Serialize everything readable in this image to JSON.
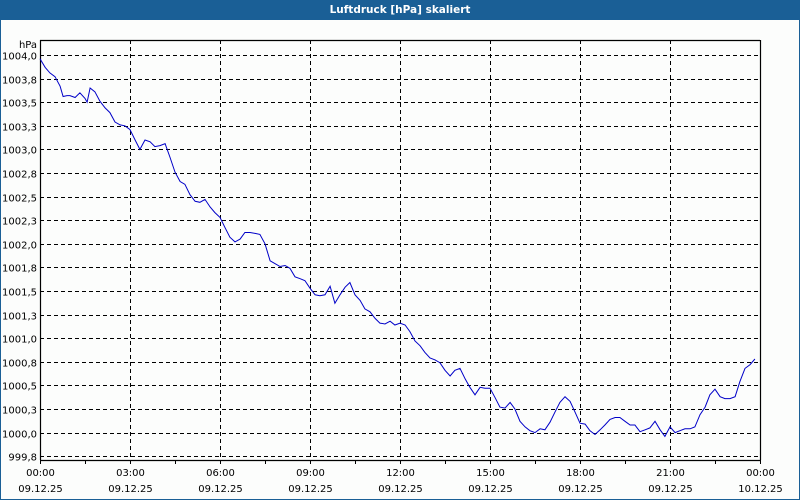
{
  "window": {
    "title": "Luftdruck [hPa] skaliert"
  },
  "colors": {
    "titlebar": "#1a5f96",
    "line": "#0000c8",
    "grid": "#000000",
    "background": "#fcfdfc"
  },
  "chart_data": {
    "type": "line",
    "title": "Luftdruck [hPa] skaliert",
    "xlabel": "",
    "ylabel": "hPa",
    "ylim": [
      999.75,
      1004.0
    ],
    "xlim": [
      "09.12.25 00:00",
      "10.12.25 00:00"
    ],
    "grid": true,
    "legend": null,
    "y_ticks": [
      "1004,0",
      "1003,8",
      "1003,5",
      "1003,3",
      "1003,0",
      "1002,8",
      "1002,5",
      "1002,3",
      "1002,0",
      "1001,8",
      "1001,5",
      "1001,3",
      "1001,0",
      "1000,8",
      "1000,5",
      "1000,3",
      "1000,0",
      "999,8"
    ],
    "x_ticks": [
      {
        "time": "00:00",
        "date": "09.12.25"
      },
      {
        "time": "03:00",
        "date": "09.12.25"
      },
      {
        "time": "06:00",
        "date": "09.12.25"
      },
      {
        "time": "09:00",
        "date": "09.12.25"
      },
      {
        "time": "12:00",
        "date": "09.12.25"
      },
      {
        "time": "15:00",
        "date": "09.12.25"
      },
      {
        "time": "18:00",
        "date": "09.12.25"
      },
      {
        "time": "21:00",
        "date": "09.12.25"
      },
      {
        "time": "00:00",
        "date": "10.12.25"
      }
    ],
    "series": [
      {
        "name": "Luftdruck",
        "hours": [
          0,
          0.17,
          0.33,
          0.5,
          0.67,
          0.77,
          0.9,
          1.0,
          1.17,
          1.33,
          1.5,
          1.57,
          1.67,
          1.83,
          2.0,
          2.17,
          2.33,
          2.5,
          2.67,
          2.83,
          3.0,
          3.17,
          3.33,
          3.5,
          3.67,
          3.83,
          4.0,
          4.17,
          4.33,
          4.5,
          4.67,
          4.83,
          5.0,
          5.17,
          5.33,
          5.5,
          5.67,
          5.83,
          6.0,
          6.17,
          6.33,
          6.5,
          6.67,
          6.83,
          7.0,
          7.17,
          7.33,
          7.5,
          7.67,
          7.83,
          8.0,
          8.17,
          8.33,
          8.5,
          8.67,
          8.83,
          9.0,
          9.17,
          9.33,
          9.5,
          9.67,
          9.83,
          10.0,
          10.17,
          10.33,
          10.5,
          10.67,
          10.83,
          11.0,
          11.17,
          11.33,
          11.5,
          11.67,
          11.83,
          12.0,
          12.17,
          12.33,
          12.5,
          12.67,
          12.83,
          13.0,
          13.17,
          13.33,
          13.5,
          13.67,
          13.83,
          14.0,
          14.17,
          14.33,
          14.5,
          14.67,
          14.83,
          15.0,
          15.17,
          15.33,
          15.5,
          15.67,
          15.83,
          16.0,
          16.17,
          16.33,
          16.5,
          16.67,
          16.83,
          17.0,
          17.17,
          17.33,
          17.5,
          17.67,
          17.83,
          18.0,
          18.17,
          18.33,
          18.5,
          18.67,
          18.83,
          19.0,
          19.17,
          19.33,
          19.5,
          19.67,
          19.83,
          20.0,
          20.17,
          20.33,
          20.5,
          20.67,
          20.83,
          21.0,
          21.17,
          21.33,
          21.5,
          21.67,
          21.83,
          22.0,
          22.17,
          22.33,
          22.5,
          22.67,
          22.83,
          23.0,
          23.17,
          23.33,
          23.5,
          23.67,
          23.83
        ],
        "values": [
          1003.96,
          1003.87,
          1003.81,
          1003.77,
          1003.67,
          1003.56,
          1003.57,
          1003.57,
          1003.55,
          1003.6,
          1003.54,
          1003.5,
          1003.65,
          1003.61,
          1003.51,
          1003.44,
          1003.39,
          1003.29,
          1003.26,
          1003.25,
          1003.21,
          1003.1,
          1003.0,
          1003.1,
          1003.08,
          1003.03,
          1003.04,
          1003.06,
          1002.92,
          1002.76,
          1002.66,
          1002.63,
          1002.52,
          1002.45,
          1002.44,
          1002.47,
          1002.39,
          1002.33,
          1002.28,
          1002.17,
          1002.07,
          1002.02,
          1002.05,
          1002.12,
          1002.12,
          1002.11,
          1002.1,
          1002.0,
          1001.82,
          1001.79,
          1001.76,
          1001.77,
          1001.74,
          1001.65,
          1001.63,
          1001.61,
          1001.53,
          1001.46,
          1001.45,
          1001.46,
          1001.55,
          1001.37,
          1001.46,
          1001.54,
          1001.59,
          1001.46,
          1001.4,
          1001.31,
          1001.28,
          1001.21,
          1001.16,
          1001.15,
          1001.18,
          1001.14,
          1001.16,
          1001.14,
          1001.07,
          1000.97,
          1000.92,
          1000.85,
          1000.79,
          1000.77,
          1000.74,
          1000.66,
          1000.6,
          1000.66,
          1000.68,
          1000.57,
          1000.48,
          1000.4,
          1000.48,
          1000.47,
          1000.47,
          1000.37,
          1000.27,
          1000.26,
          1000.32,
          1000.25,
          1000.12,
          1000.06,
          1000.02,
          1000.0,
          1000.04,
          1000.03,
          1000.11,
          1000.22,
          1000.32,
          1000.38,
          1000.33,
          1000.22,
          1000.1,
          1000.09,
          1000.02,
          999.98,
          1000.03,
          1000.08,
          1000.14,
          1000.16,
          1000.16,
          1000.12,
          1000.08,
          1000.08,
          1000.01,
          1000.03,
          1000.05,
          1000.12,
          1000.03,
          999.96,
          1000.06,
          1000.0,
          1000.02,
          1000.04,
          1000.04,
          1000.06,
          1000.19,
          1000.27,
          1000.4,
          1000.46,
          1000.38,
          1000.36,
          1000.36,
          1000.38,
          1000.54,
          1000.68,
          1000.72,
          1000.78
        ]
      }
    ]
  }
}
